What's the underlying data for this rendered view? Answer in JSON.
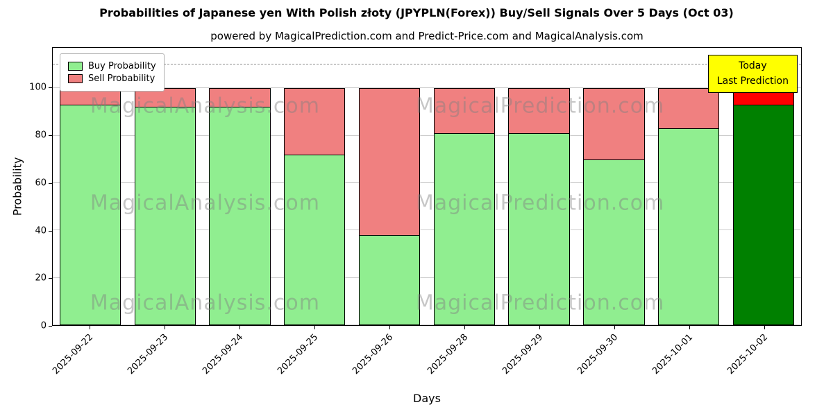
{
  "chart_data": {
    "type": "bar",
    "stacked": true,
    "title": "Probabilities of Japanese yen With Polish złoty (JPYPLN(Forex)) Buy/Sell Signals Over 5 Days (Oct 03)",
    "subtitle": "powered by MagicalPrediction.com and Predict-Price.com and MagicalAnalysis.com",
    "xlabel": "Days",
    "ylabel": "Probability",
    "categories": [
      "2025-09-22",
      "2025-09-23",
      "2025-09-24",
      "2025-09-25",
      "2025-09-26",
      "2025-09-28",
      "2025-09-29",
      "2025-09-30",
      "2025-10-01",
      "2025-10-02"
    ],
    "series": [
      {
        "name": "Buy Probability",
        "color": "#90EE90",
        "values": [
          93,
          92,
          92,
          72,
          38,
          81,
          81,
          70,
          83,
          93
        ]
      },
      {
        "name": "Sell Probability",
        "color": "#F08080",
        "values": [
          7,
          8,
          8,
          28,
          62,
          19,
          19,
          30,
          17,
          7
        ]
      }
    ],
    "today_bar": {
      "index": 9,
      "buy_color": "#008000",
      "sell_color": "#FF0000"
    },
    "ylim": [
      0,
      117
    ],
    "yticks": [
      0,
      20,
      40,
      60,
      80,
      100
    ],
    "dashed_line_y": 110,
    "grid": true,
    "legend_position": "upper-left",
    "bar_edge_color": "#000000",
    "annotation": {
      "lines": [
        "Today",
        "Last Prediction"
      ],
      "bg_color": "#FFFF00"
    },
    "watermark": {
      "left_text": "MagicalAnalysis.com",
      "right_text": "MagicalPrediction.com"
    }
  }
}
